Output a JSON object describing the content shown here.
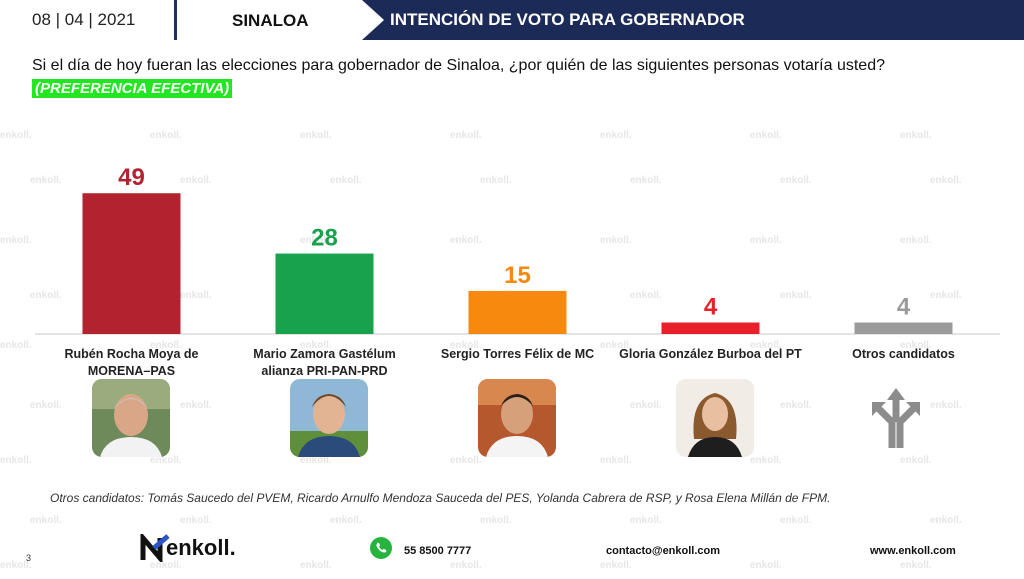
{
  "header": {
    "date": "08 | 04 | 2021",
    "state": "SINALOA",
    "title": "INTENCIÓN DE VOTO PARA GOBERNADOR"
  },
  "question": "Si el día de hoy fueran las elecciones para gobernador de Sinaloa, ¿por quién de las siguientes personas votaría usted?",
  "subtitle": "(PREFERENCIA EFECTIVA)",
  "chart_data": {
    "type": "bar",
    "categories": [
      "Rubén Rocha Moya de MORENA–PAS",
      "Mario Zamora Gastélum alianza PRI-PAN-PRD",
      "Sergio Torres Félix de MC",
      "Gloria González Burboa del PT",
      "Otros candidatos"
    ],
    "category_lines": [
      [
        "Rubén Rocha Moya de",
        "MORENA–PAS"
      ],
      [
        "Mario Zamora Gastélum",
        "alianza PRI-PAN-PRD"
      ],
      [
        "Sergio Torres Félix de MC"
      ],
      [
        "Gloria González Burboa del PT"
      ],
      [
        "Otros candidatos"
      ]
    ],
    "values": [
      49,
      28,
      15,
      4,
      4
    ],
    "colors": [
      "#b3222f",
      "#18a24e",
      "#f7890f",
      "#e8202a",
      "#9b9b9b"
    ],
    "ylim": [
      0,
      55
    ],
    "grid": false
  },
  "icons": {
    "candidate_1": "candidate-photo-icon",
    "candidate_2": "candidate-photo-icon",
    "candidate_3": "candidate-photo-icon",
    "candidate_4": "candidate-photo-icon",
    "others": "diverging-arrows-icon",
    "whatsapp": "whatsapp-icon"
  },
  "footnote": "Otros candidatos: Tomás Saucedo del PVEM, Ricardo Arnulfo Mendoza Sauceda del PES, Yolanda Cabrera de RSP, y Rosa Elena Millán de FPM.",
  "footer": {
    "page_number": "3",
    "brand": "enkoll.",
    "phone": "55 8500 7777",
    "email": "contacto@enkoll.com",
    "website": "www.enkoll.com"
  },
  "watermark_text": "enkoll."
}
